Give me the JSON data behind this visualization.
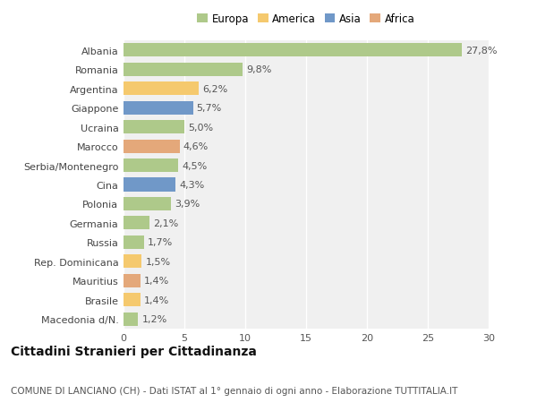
{
  "categories": [
    "Albania",
    "Romania",
    "Argentina",
    "Giappone",
    "Ucraina",
    "Marocco",
    "Serbia/Montenegro",
    "Cina",
    "Polonia",
    "Germania",
    "Russia",
    "Rep. Dominicana",
    "Mauritius",
    "Brasile",
    "Macedonia d/N."
  ],
  "values": [
    27.8,
    9.8,
    6.2,
    5.7,
    5.0,
    4.6,
    4.5,
    4.3,
    3.9,
    2.1,
    1.7,
    1.5,
    1.4,
    1.4,
    1.2
  ],
  "labels": [
    "27,8%",
    "9,8%",
    "6,2%",
    "5,7%",
    "5,0%",
    "4,6%",
    "4,5%",
    "4,3%",
    "3,9%",
    "2,1%",
    "1,7%",
    "1,5%",
    "1,4%",
    "1,4%",
    "1,2%"
  ],
  "colors": [
    "#aec98a",
    "#aec98a",
    "#f5c96e",
    "#7098c8",
    "#aec98a",
    "#e4a87a",
    "#aec98a",
    "#7098c8",
    "#aec98a",
    "#aec98a",
    "#aec98a",
    "#f5c96e",
    "#e4a87a",
    "#f5c96e",
    "#aec98a"
  ],
  "legend_labels": [
    "Europa",
    "America",
    "Asia",
    "Africa"
  ],
  "legend_colors": [
    "#aec98a",
    "#f5c96e",
    "#7098c8",
    "#e4a87a"
  ],
  "title": "Cittadini Stranieri per Cittadinanza",
  "subtitle": "COMUNE DI LANCIANO (CH) - Dati ISTAT al 1° gennaio di ogni anno - Elaborazione TUTTITALIA.IT",
  "xlim": [
    0,
    30
  ],
  "xticks": [
    0,
    5,
    10,
    15,
    20,
    25,
    30
  ],
  "bg_color": "#ffffff",
  "plot_bg_color": "#f0f0f0",
  "grid_color": "#ffffff",
  "bar_height": 0.7,
  "title_fontsize": 10,
  "subtitle_fontsize": 7.5,
  "tick_fontsize": 8,
  "label_fontsize": 8,
  "legend_fontsize": 8.5
}
